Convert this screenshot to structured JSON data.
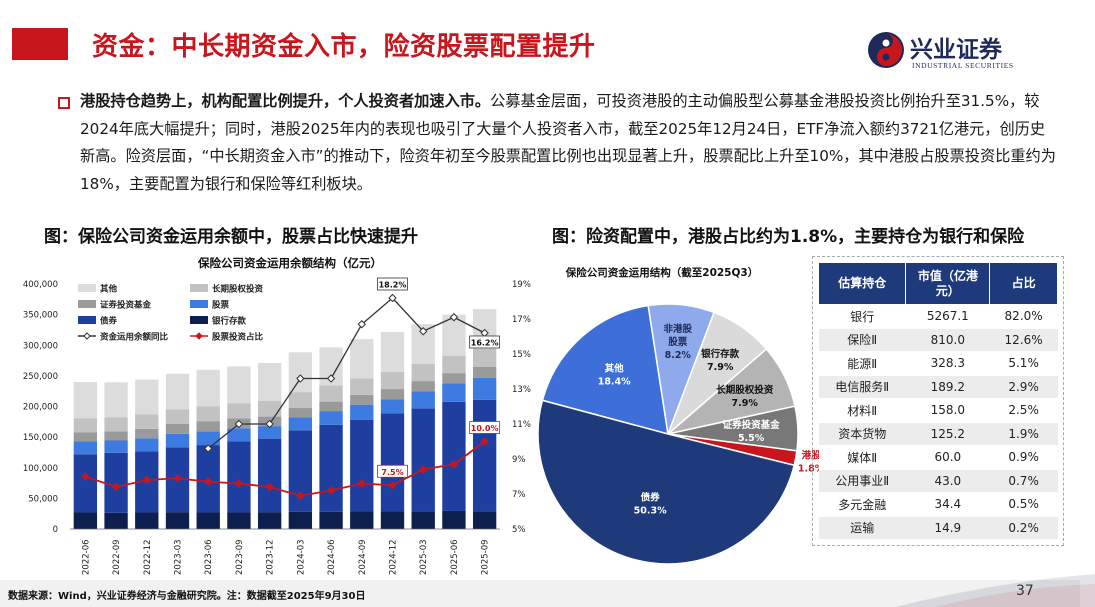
{
  "header": {
    "title": "资金：中长期资金入市，险资股票配置提升",
    "logo_cn": "兴业证券",
    "logo_en": "INDUSTRIAL SECURITIES",
    "accent": "#c8161d"
  },
  "summary": {
    "lead": "港股持仓趋势上，机构配置比例提升，个人投资者加速入市。",
    "body": "公募基金层面，可投资港股的主动偏股型公募基金港股投资比例抬升至31.5%，较2024年底大幅提升；同时，港股2025年内的表现也吸引了大量个人投资者入市，截至2025年12月24日，ETF净流入额约3721亿港元，创历史新高。险资层面，“中长期资金入市”的推动下，险资年初至今股票配置比例也出现显著上升，股票配比上升至10%，其中港股占股票投资比重约为18%，主要配置为银行和保险等红利板块。"
  },
  "figures": {
    "left_title": "图：保险公司资金运用余额中，股票占比快速提升",
    "right_title": "图：险资配置中，港股占比约为1.8%，主要持仓为银行和保险"
  },
  "chart_data": [
    {
      "type": "bar",
      "stacked": true,
      "title": "保险公司资金运用余额结构（亿元）",
      "categories": [
        "2022-06",
        "2022-09",
        "2022-12",
        "2023-03",
        "2023-06",
        "2023-09",
        "2023-12",
        "2024-03",
        "2024-06",
        "2024-09",
        "2024-12",
        "2025-03",
        "2025-06",
        "2025-09"
      ],
      "ylim": [
        0,
        400000
      ],
      "yticks": [
        "0",
        "50,000",
        "100,000",
        "150,000",
        "200,000",
        "250,000",
        "300,000",
        "350,000",
        "400,000"
      ],
      "y2lim": [
        5,
        19
      ],
      "y2ticks": [
        "5%",
        "7%",
        "9%",
        "11%",
        "13%",
        "15%",
        "17%",
        "19%"
      ],
      "legend": [
        "其他",
        "长期股权投资",
        "证券投资基金",
        "股票",
        "债券",
        "银行存款",
        "资金运用余额同比",
        "股票投资占比"
      ],
      "series": [
        {
          "name": "银行存款",
          "color": "#0d1f4f",
          "values": [
            27000,
            26500,
            27000,
            27500,
            27000,
            27000,
            27500,
            28000,
            28000,
            28500,
            28500,
            29000,
            29500,
            29000
          ]
        },
        {
          "name": "债券",
          "color": "#1f3fa0",
          "values": [
            95000,
            98000,
            100000,
            106000,
            110000,
            116000,
            120000,
            133000,
            142000,
            150000,
            160000,
            168000,
            178000,
            182000
          ]
        },
        {
          "name": "股票",
          "color": "#3e7be0",
          "values": [
            21000,
            20000,
            21000,
            22000,
            22500,
            21500,
            20500,
            21000,
            22500,
            24500,
            23500,
            27500,
            30000,
            36000
          ]
        },
        {
          "name": "证券投资基金",
          "color": "#9a9a9a",
          "values": [
            15000,
            15000,
            15500,
            16000,
            16000,
            16000,
            15500,
            15500,
            15500,
            16000,
            16500,
            17000,
            17000,
            18000
          ]
        },
        {
          "name": "长期股权投资",
          "color": "#c2c2c2",
          "values": [
            23000,
            23000,
            23500,
            24000,
            24500,
            25000,
            25500,
            26000,
            26500,
            27000,
            28000,
            28000,
            28500,
            29000
          ]
        },
        {
          "name": "其他",
          "color": "#dcdcdc",
          "values": [
            59000,
            57000,
            57000,
            58000,
            60000,
            60000,
            62000,
            65000,
            62000,
            64000,
            65000,
            65000,
            67000,
            65000
          ]
        },
        {
          "name": "资金运用余额同比",
          "type": "line",
          "axis": "right",
          "color": "#333333",
          "values": [
            null,
            null,
            null,
            null,
            9.6,
            11.0,
            11.0,
            13.6,
            13.6,
            16.7,
            18.2,
            16.3,
            17.1,
            16.2
          ]
        },
        {
          "name": "股票投资占比",
          "type": "line",
          "axis": "right",
          "color": "#c8161d",
          "values": [
            8.0,
            7.4,
            7.8,
            7.9,
            7.7,
            7.6,
            7.4,
            6.9,
            7.2,
            7.6,
            7.5,
            8.4,
            8.7,
            10.0
          ]
        }
      ],
      "annotations": [
        "18.2%",
        "16.2%",
        "7.5%",
        "10.0%"
      ]
    },
    {
      "type": "pie",
      "title": "保险公司资金运用结构（截至2025Q3）",
      "slices": [
        {
          "name": "债券",
          "value": 50.3,
          "label": "50.3%",
          "color": "#1f3a7a"
        },
        {
          "name": "其他",
          "value": 18.4,
          "label": "18.4%",
          "color": "#3e6fd8"
        },
        {
          "name": "非港股 股票",
          "value": 8.2,
          "label": "8.2%",
          "color": "#8eaaec"
        },
        {
          "name": "银行存款",
          "value": 7.9,
          "label": "7.9%",
          "color": "#dadada"
        },
        {
          "name": "长期股权投资",
          "value": 7.9,
          "label": "7.9%",
          "color": "#b4b4b4"
        },
        {
          "name": "证券投资基金",
          "value": 5.5,
          "label": "5.5%",
          "color": "#787878"
        },
        {
          "name": "港股",
          "value": 1.8,
          "label": "1.8%",
          "color": "#c8161d"
        }
      ]
    },
    {
      "type": "table",
      "columns": [
        "估算持仓",
        "市值（亿港元）",
        "占比"
      ],
      "rows": [
        [
          "银行",
          "5267.1",
          "82.0%"
        ],
        [
          "保险Ⅱ",
          "810.0",
          "12.6%"
        ],
        [
          "能源Ⅱ",
          "328.3",
          "5.1%"
        ],
        [
          "电信服务Ⅱ",
          "189.2",
          "2.9%"
        ],
        [
          "材料Ⅱ",
          "158.0",
          "2.5%"
        ],
        [
          "资本货物",
          "125.2",
          "1.9%"
        ],
        [
          "媒体Ⅱ",
          "60.0",
          "0.9%"
        ],
        [
          "公用事业Ⅱ",
          "43.0",
          "0.7%"
        ],
        [
          "多元金融",
          "34.4",
          "0.5%"
        ],
        [
          "运输",
          "14.9",
          "0.2%"
        ]
      ]
    }
  ],
  "footer": {
    "source": "数据来源：Wind，兴业证券经济与金融研究院。注：数据截至2025年9月30日",
    "page": "37"
  }
}
